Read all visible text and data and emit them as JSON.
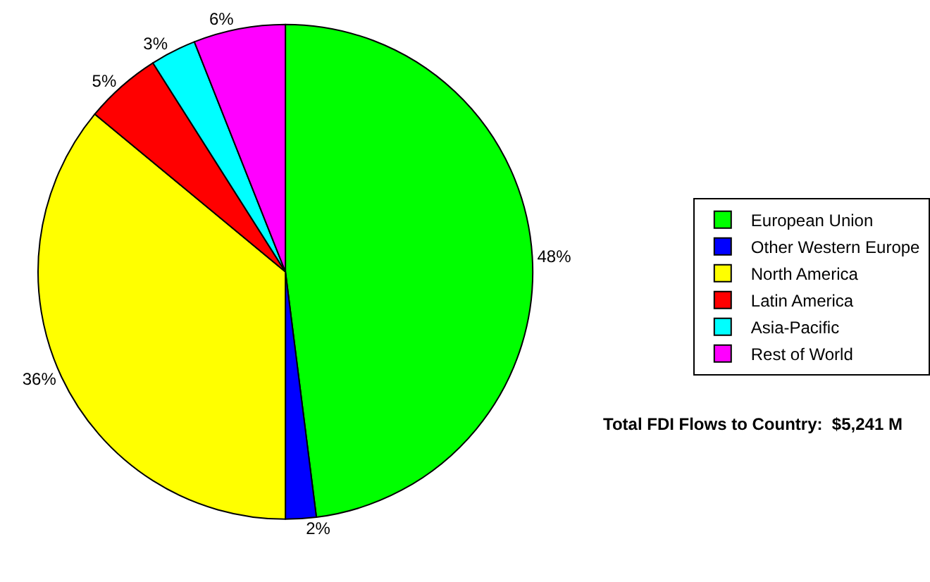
{
  "chart_data": {
    "type": "pie",
    "categories": [
      "European Union",
      "Other Western Europe",
      "North America",
      "Latin America",
      "Asia-Pacific",
      "Rest of World"
    ],
    "values": [
      48,
      2,
      36,
      5,
      3,
      6
    ],
    "colors": [
      "#00ff00",
      "#0000ff",
      "#ffff00",
      "#ff0000",
      "#00ffff",
      "#ff00ff"
    ],
    "value_labels": [
      "48%",
      "2%",
      "36%",
      "5%",
      "3%",
      "6%"
    ],
    "legend": "right",
    "annotations": [
      "Total FDI Flows to Country:  $5,241 M"
    ]
  }
}
